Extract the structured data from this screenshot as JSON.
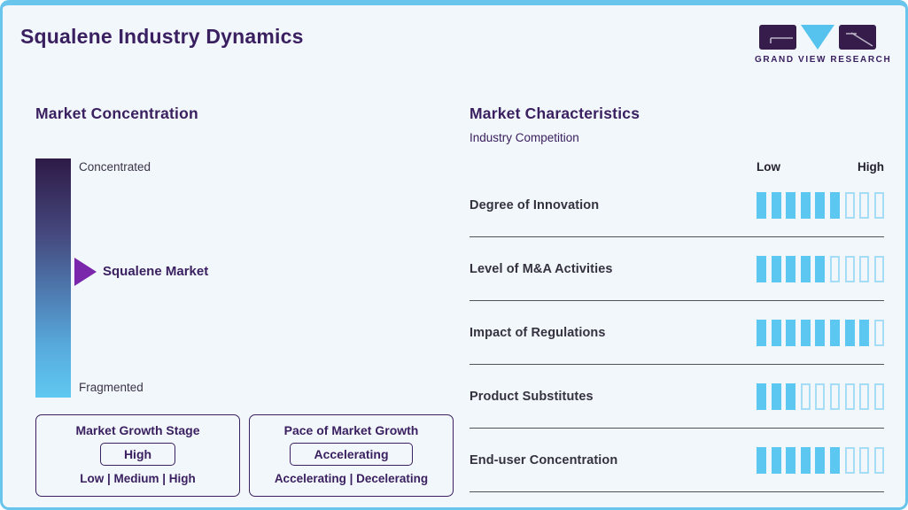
{
  "header": {
    "title": "Squalene Industry Dynamics",
    "logo_text": "GRAND VIEW RESEARCH"
  },
  "concentration": {
    "heading": "Market Concentration",
    "top_label": "Concentrated",
    "bottom_label": "Fragmented",
    "marker_label": "Squalene Market",
    "growth_stage": {
      "title": "Market Growth Stage",
      "value": "High",
      "options": "Low | Medium | High"
    },
    "growth_pace": {
      "title": "Pace of Market Growth",
      "value": "Accelerating",
      "options": "Accelerating | Decelerating"
    }
  },
  "characteristics": {
    "heading": "Market Characteristics",
    "subheading": "Industry Competition",
    "scale_low": "Low",
    "scale_high": "High",
    "rows": [
      {
        "label": "Degree of Innovation",
        "filled": 6,
        "total": 9
      },
      {
        "label": "Level of M&A Activities",
        "filled": 5,
        "total": 9
      },
      {
        "label": "Impact of Regulations",
        "filled": 8,
        "total": 9
      },
      {
        "label": "Product Substitutes",
        "filled": 3,
        "total": 9
      },
      {
        "label": "End-user Concentration",
        "filled": 6,
        "total": 9
      }
    ]
  },
  "colors": {
    "accent_blue": "#5cc8f1",
    "accent_blue_light": "#a5ddf6",
    "border_blue": "#69c5ec",
    "purple_dark": "#3a2060",
    "arrow_purple": "#7b27ab",
    "gradient_top": "#2e1a47",
    "gradient_bottom": "#5fc8f1",
    "background": "#f2f7fb"
  },
  "chart_data": [
    {
      "type": "bar",
      "title": "Market Characteristics",
      "subtitle": "Industry Competition",
      "categories": [
        "Degree of Innovation",
        "Level of M&A Activities",
        "Impact of Regulations",
        "Product Substitutes",
        "End-user Concentration"
      ],
      "values": [
        6,
        5,
        8,
        3,
        6
      ],
      "value_scale": {
        "segments_total": 9,
        "min_label": "Low",
        "max_label": "High"
      },
      "orientation": "horizontal-segmented",
      "legend_position": "none",
      "grid": false
    },
    {
      "type": "heatmap",
      "title": "Market Concentration",
      "scale_top_label": "Concentrated",
      "scale_bottom_label": "Fragmented",
      "marker": "Squalene Market",
      "marker_position_pct_from_top": 47,
      "annotations": [
        "Market Growth Stage: High (Low | Medium | High)",
        "Pace of Market Growth: Accelerating (Accelerating | Decelerating)"
      ]
    }
  ]
}
